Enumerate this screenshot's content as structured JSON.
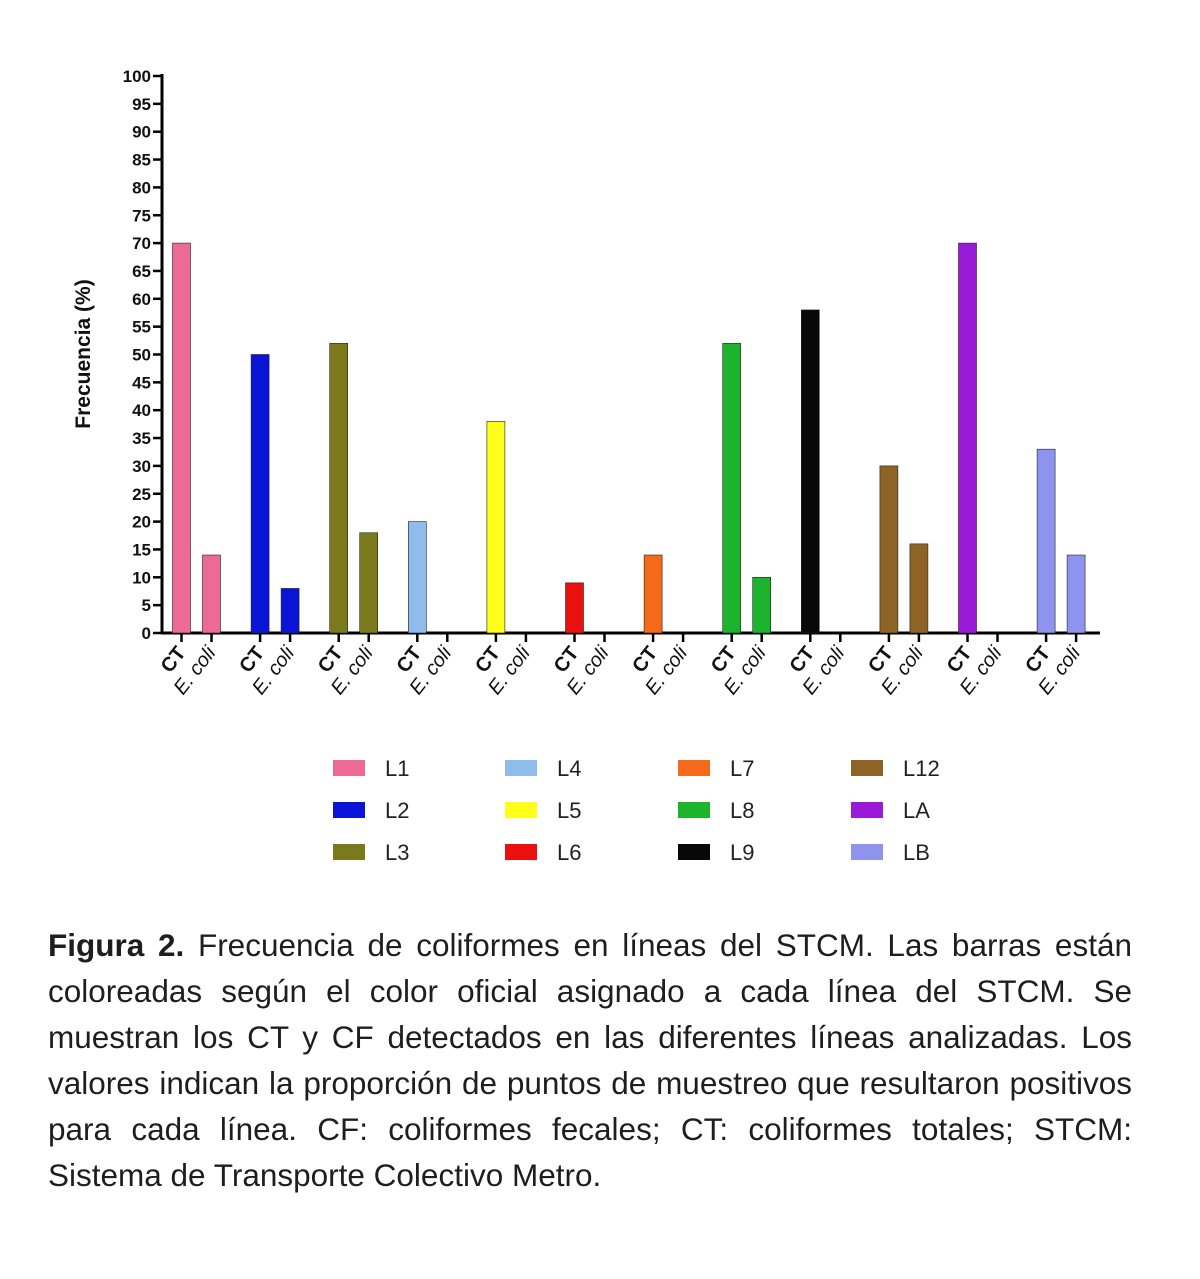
{
  "chart_data": {
    "type": "bar",
    "ylabel": "Frecuencia (%)",
    "ylim": [
      0,
      100
    ],
    "yticks": [
      0,
      5,
      10,
      15,
      20,
      25,
      30,
      35,
      40,
      45,
      50,
      55,
      60,
      65,
      70,
      75,
      80,
      85,
      90,
      95,
      100
    ],
    "sub_categories": [
      "CT",
      "E. coli"
    ],
    "series": [
      {
        "name": "L1",
        "color": "#ee6a96",
        "values": [
          70,
          14
        ]
      },
      {
        "name": "L2",
        "color": "#0a14d6",
        "values": [
          50,
          8
        ]
      },
      {
        "name": "L3",
        "color": "#7a7a1c",
        "values": [
          52,
          18
        ]
      },
      {
        "name": "L4",
        "color": "#8fbcec",
        "values": [
          20,
          0
        ]
      },
      {
        "name": "L5",
        "color": "#ffff1a",
        "values": [
          38,
          0
        ]
      },
      {
        "name": "L6",
        "color": "#ea1010",
        "values": [
          9,
          0
        ]
      },
      {
        "name": "L7",
        "color": "#f46a1a",
        "values": [
          14,
          0
        ]
      },
      {
        "name": "L8",
        "color": "#1cb42c",
        "values": [
          52,
          10
        ]
      },
      {
        "name": "L9",
        "color": "#080808",
        "values": [
          58,
          0
        ]
      },
      {
        "name": "L12",
        "color": "#8e6426",
        "values": [
          30,
          16
        ]
      },
      {
        "name": "LA",
        "color": "#9a1ad8",
        "values": [
          70,
          0
        ]
      },
      {
        "name": "LB",
        "color": "#8e94ee",
        "values": [
          33,
          14
        ]
      }
    ]
  },
  "caption": {
    "lead": "Figura 2.",
    "text": "Frecuencia de coliformes en líneas del STCM. Las barras están coloreadas según el color oficial asignado a cada línea del STCM. Se muestran los CT y CF detectados en las diferentes líneas analizadas. Los valores indican la proporción de puntos de muestreo que resultaron positivos para cada línea. CF: coliformes fecales; CT: coliformes totales; STCM: Sistema de Transporte Colectivo Metro."
  }
}
